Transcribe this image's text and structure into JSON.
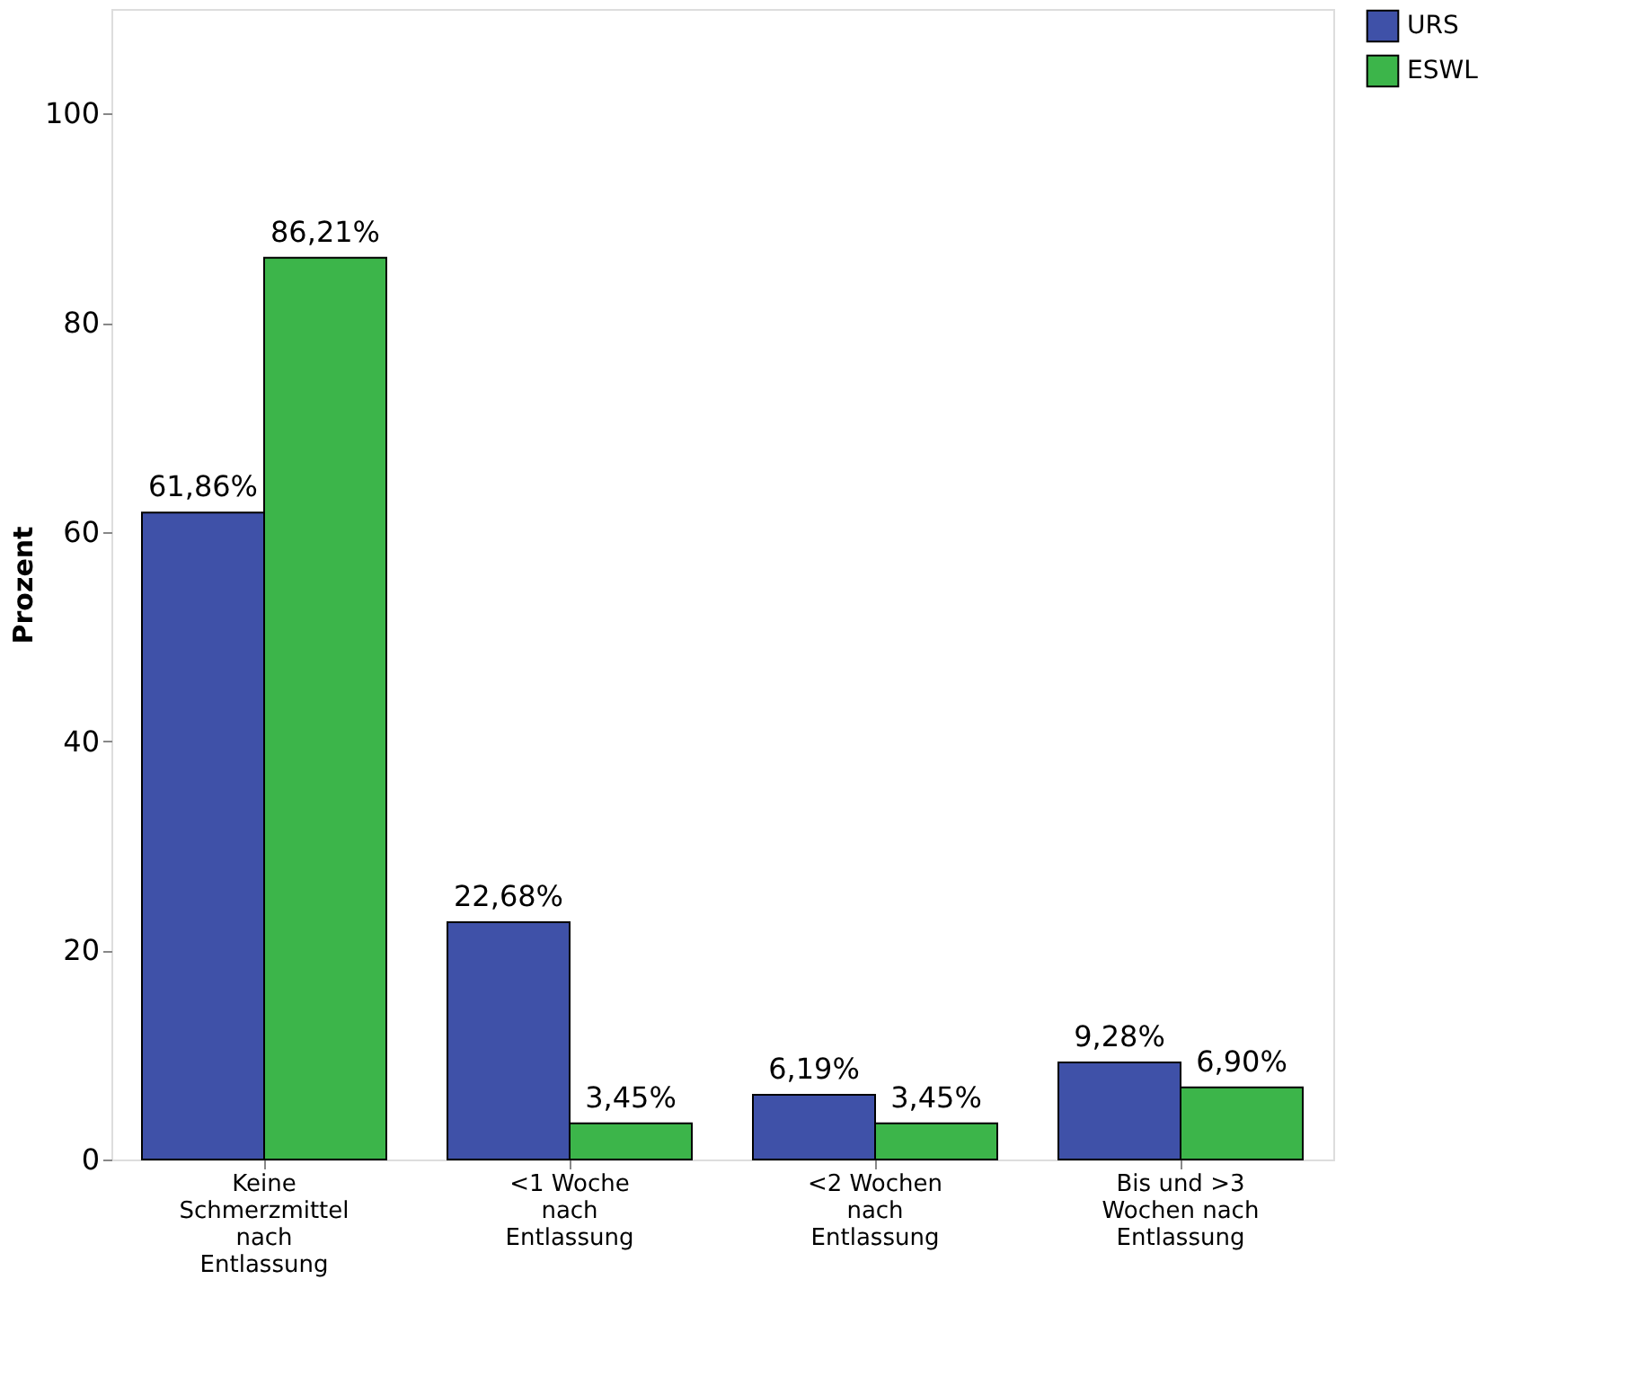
{
  "chart_data": {
    "type": "bar",
    "ylabel": "Prozent",
    "categories": [
      "Keine Schmerzmittel nach Entlassung",
      "<1 Woche nach Entlassung",
      "<2 Wochen nach Entlassung",
      "Bis und >3 Wochen nach Entlassung"
    ],
    "series": [
      {
        "name": "URS",
        "color": "#3f51a8",
        "values": [
          61.86,
          22.68,
          6.19,
          9.28
        ],
        "value_labels": [
          "61,86%",
          "22,68%",
          "6,19%",
          "9,28%"
        ]
      },
      {
        "name": "ESWL",
        "color": "#3cb54a",
        "values": [
          86.21,
          3.45,
          3.45,
          6.9
        ],
        "value_labels": [
          "86,21%",
          "3,45%",
          "3,45%",
          "6,90%"
        ]
      }
    ],
    "ylim": [
      0,
      110
    ],
    "yticks": [
      0,
      20,
      40,
      60,
      80,
      100
    ],
    "grid": false,
    "legend": "top right"
  }
}
